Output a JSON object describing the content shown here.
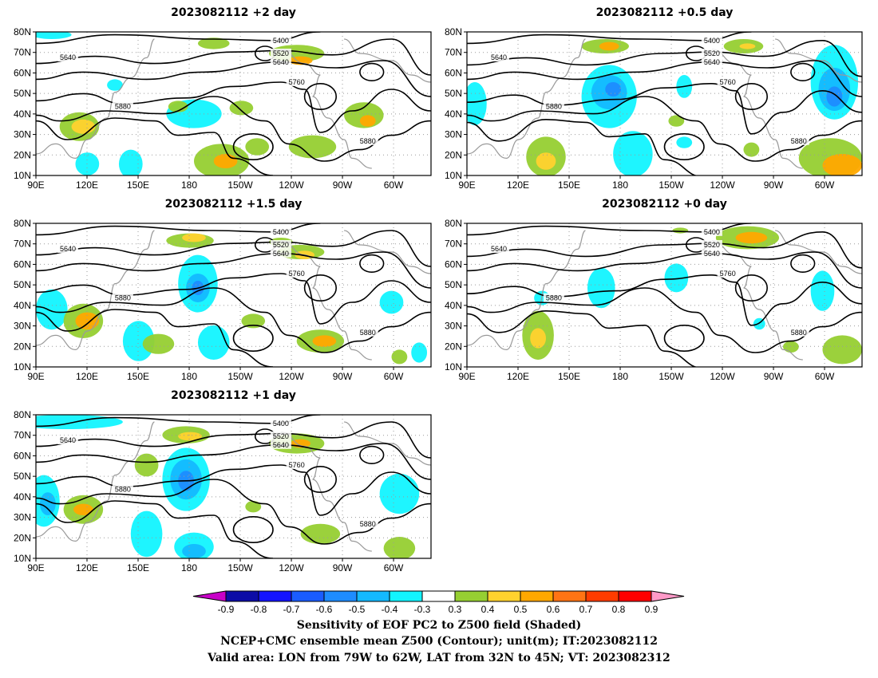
{
  "panels": [
    {
      "title": "2023082112 +2 day",
      "slot": 0
    },
    {
      "title": "2023082112 +0.5 day",
      "slot": 1
    },
    {
      "title": "2023082112 +1.5 day",
      "slot": 2
    },
    {
      "title": "2023082112 +0 day",
      "slot": 3
    },
    {
      "title": "2023082112 +1 day",
      "slot": 4
    }
  ],
  "axes": {
    "lat_labels": [
      "10N",
      "20N",
      "30N",
      "40N",
      "50N",
      "60N",
      "70N",
      "80N"
    ],
    "lon_labels": [
      "90E",
      "120E",
      "150E",
      "180",
      "150W",
      "120W",
      "90W",
      "60W"
    ],
    "lon_range": [
      90,
      322
    ],
    "lat_range": [
      10,
      80
    ]
  },
  "contour_labels": [
    "5400",
    "5520",
    "5640",
    "5760",
    "5880"
  ],
  "colorbar": {
    "ticks": [
      "-0.9",
      "-0.8",
      "-0.7",
      "-0.6",
      "-0.5",
      "-0.4",
      "-0.3",
      "0.3",
      "0.4",
      "0.5",
      "0.6",
      "0.7",
      "0.8",
      "0.9"
    ],
    "colors": [
      "#0c0ca6",
      "#1414ff",
      "#1a5cff",
      "#1e8cff",
      "#14b9ff",
      "#12f4ff",
      "#ffffff",
      "#96cf32",
      "#ffd22e",
      "#ffa800",
      "#ff7414",
      "#ff3c00",
      "#ff0000"
    ],
    "low_color": "#c800c8",
    "high_color": "#ff9ac8"
  },
  "caption": {
    "line1": "Sensitivity of EOF PC2 to Z500 field (Shaded)",
    "line2": "NCEP+CMC ensemble mean Z500 (Contour); unit(m); IT:2023082112",
    "line3": "Valid area: LON from 79W to 62W, LAT from 32N to 45N; VT: 2023082312"
  }
}
